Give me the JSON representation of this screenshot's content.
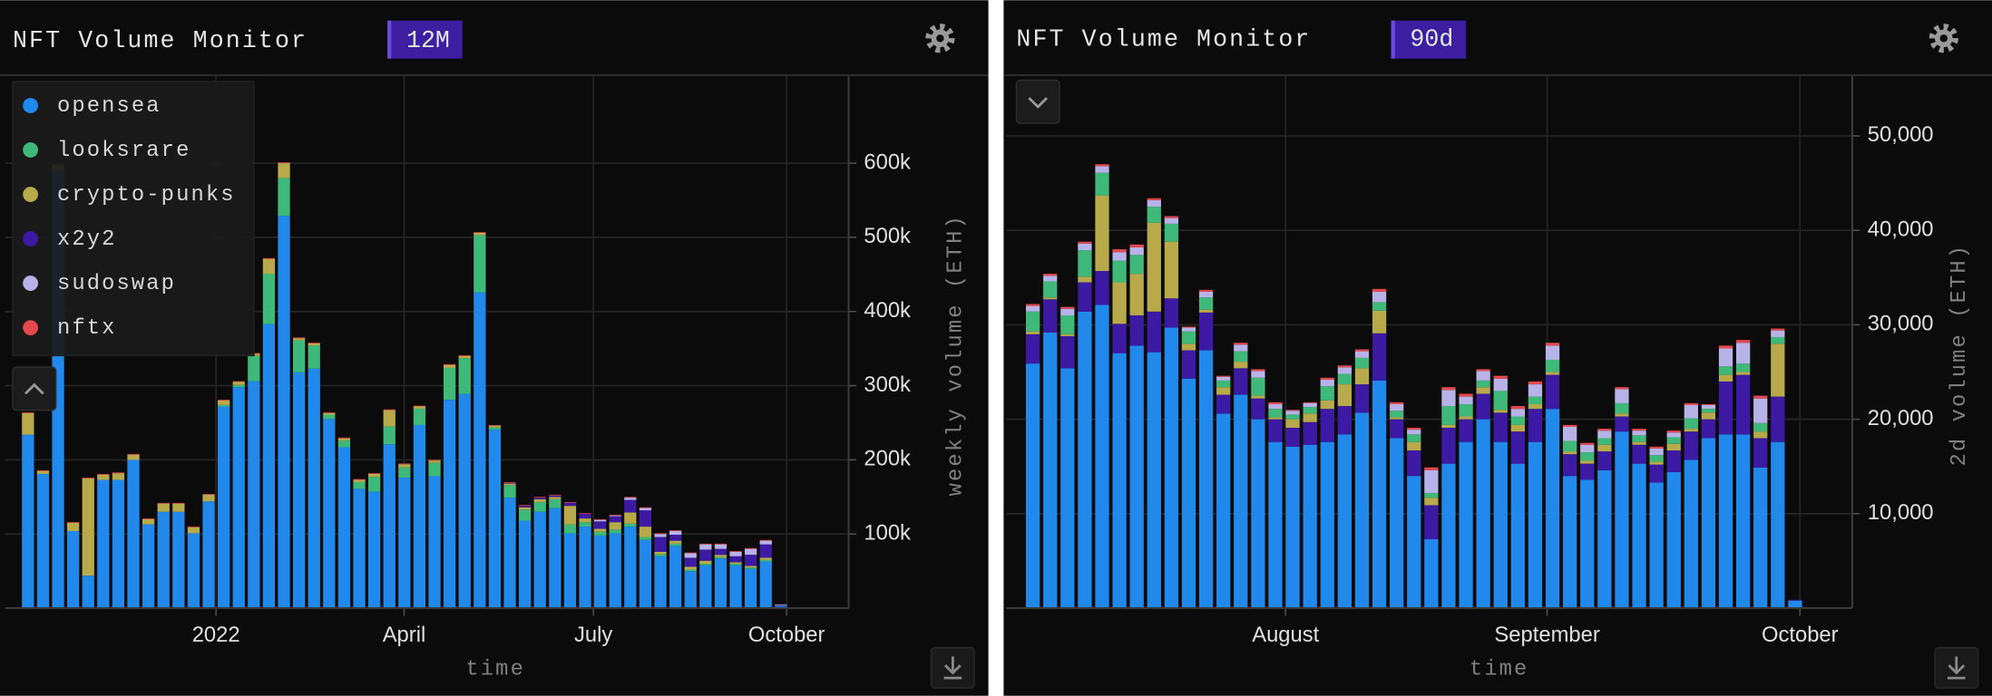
{
  "chart_data": [
    {
      "type": "stacked_bar",
      "title": "NFT Volume Monitor",
      "badge": "12M",
      "x_label": "time",
      "y_label": "weekly volume (ETH)",
      "legend": "upper left",
      "grid": true,
      "x": [
        0,
        1,
        2,
        3,
        4,
        5,
        6,
        7,
        8,
        9,
        10,
        11,
        12,
        13,
        14,
        15,
        16,
        17,
        18,
        19,
        20,
        21,
        22,
        23,
        24,
        25,
        26,
        27,
        28,
        29,
        30,
        31,
        32,
        33,
        34,
        35,
        36,
        37,
        38,
        39,
        40,
        41,
        42,
        43,
        44,
        45,
        46,
        47,
        48,
        49,
        50
      ],
      "xlim": [
        -1.52,
        54.5
      ],
      "xticks": [
        {
          "value": 12.49,
          "label": "2022"
        },
        {
          "value": 24.98,
          "label": "April"
        },
        {
          "value": 37.55,
          "label": "July"
        },
        {
          "value": 50.38,
          "label": "October"
        }
      ],
      "ylim": [
        0,
        717000
      ],
      "yticks": [
        {
          "value": 100000,
          "label": "100k"
        },
        {
          "value": 200000,
          "label": "200k"
        },
        {
          "value": 300000,
          "label": "300k"
        },
        {
          "value": 400000,
          "label": "400k"
        },
        {
          "value": 500000,
          "label": "500k"
        },
        {
          "value": 600000,
          "label": "600k"
        }
      ],
      "series": [
        {
          "name": "opensea",
          "color": "#2189ec",
          "values": [
            234000,
            181000,
            590000,
            104000,
            44000,
            173000,
            173000,
            200000,
            113000,
            130000,
            130000,
            101000,
            144000,
            272000,
            298000,
            306000,
            383000,
            529000,
            318000,
            323000,
            255000,
            217000,
            161000,
            157000,
            221000,
            176000,
            247000,
            178000,
            281000,
            289000,
            426000,
            241000,
            149000,
            118000,
            130000,
            135000,
            101000,
            110000,
            98000,
            101000,
            110000,
            92000,
            70000,
            84000,
            50000,
            58000,
            67000,
            58000,
            53000,
            63000,
            3000
          ]
        },
        {
          "name": "looksrare",
          "color": "#3fb97a",
          "values": [
            0,
            0,
            0,
            0,
            0,
            0,
            0,
            0,
            0,
            0,
            0,
            0,
            0,
            2000,
            3000,
            34000,
            68000,
            51000,
            43000,
            31000,
            6000,
            9000,
            9000,
            20000,
            24000,
            14000,
            22000,
            18000,
            43000,
            48000,
            77000,
            3000,
            17000,
            15000,
            13000,
            12000,
            12000,
            6000,
            5000,
            5000,
            4000,
            4000,
            3000,
            3000,
            2000,
            2000,
            2000,
            2000,
            2000,
            2000,
            0
          ]
        },
        {
          "name": "crypto-punks",
          "color": "#b8a94a",
          "values": [
            29000,
            4000,
            8000,
            11000,
            131000,
            7000,
            9000,
            7000,
            7000,
            11000,
            11000,
            8000,
            9000,
            6000,
            4000,
            3000,
            20000,
            20000,
            3000,
            3000,
            2000,
            3000,
            3000,
            4000,
            22000,
            4000,
            3000,
            3000,
            4000,
            3000,
            3000,
            2000,
            2000,
            3000,
            4000,
            3000,
            25000,
            5000,
            4000,
            10000,
            15000,
            14000,
            3000,
            4000,
            4000,
            4000,
            3000,
            2000,
            2000,
            3000,
            0
          ]
        },
        {
          "name": "x2y2",
          "color": "#3d1aa3",
          "values": [
            0,
            0,
            0,
            0,
            0,
            0,
            0,
            0,
            0,
            0,
            0,
            0,
            0,
            0,
            0,
            0,
            0,
            0,
            0,
            0,
            0,
            0,
            0,
            0,
            0,
            0,
            0,
            0,
            0,
            0,
            0,
            0,
            1000,
            2000,
            2000,
            2000,
            4000,
            6000,
            10000,
            8000,
            17000,
            22000,
            20000,
            8000,
            12000,
            15000,
            8000,
            8000,
            15000,
            18000,
            1000
          ]
        },
        {
          "name": "sudoswap",
          "color": "#b7b3e8",
          "values": [
            0,
            0,
            0,
            0,
            0,
            0,
            0,
            0,
            0,
            0,
            0,
            0,
            0,
            0,
            0,
            0,
            0,
            0,
            0,
            0,
            0,
            0,
            0,
            0,
            0,
            0,
            0,
            0,
            0,
            0,
            0,
            0,
            0,
            0,
            0,
            0,
            0,
            0,
            2000,
            1000,
            3000,
            3000,
            4000,
            5000,
            6000,
            7000,
            6000,
            6000,
            8000,
            5000,
            1000
          ]
        },
        {
          "name": "nftx",
          "color": "#e5484d",
          "values": [
            1000,
            1000,
            1000,
            1000,
            1000,
            1000,
            1000,
            1000,
            1000,
            1000,
            1000,
            1000,
            1000,
            1000,
            1000,
            1000,
            1000,
            1000,
            1000,
            1000,
            1000,
            1000,
            1000,
            1000,
            1000,
            1000,
            1000,
            1000,
            1000,
            1000,
            1000,
            1000,
            1000,
            1000,
            1000,
            1000,
            1000,
            1000,
            1000,
            1000,
            1000,
            1000,
            1000,
            1000,
            1000,
            1000,
            1000,
            1000,
            1000,
            1000,
            0
          ]
        }
      ]
    },
    {
      "type": "stacked_bar",
      "title": "NFT Volume Monitor",
      "badge": "90d",
      "x_label": "time",
      "y_label": "2d volume (ETH)",
      "grid": true,
      "x": [
        0,
        1,
        2,
        3,
        4,
        5,
        6,
        7,
        8,
        9,
        10,
        11,
        12,
        13,
        14,
        15,
        16,
        17,
        18,
        19,
        20,
        21,
        22,
        23,
        24,
        25,
        26,
        27,
        28,
        29,
        30,
        31,
        32,
        33,
        34,
        35,
        36,
        37,
        38,
        39,
        40,
        41,
        42,
        43,
        44
      ],
      "xlim": [
        -1.54,
        47.3
      ],
      "xticks": [
        {
          "value": 14.59,
          "label": "August"
        },
        {
          "value": 29.69,
          "label": "September"
        },
        {
          "value": 44.28,
          "label": "October"
        }
      ],
      "ylim": [
        0,
        56300
      ],
      "yticks": [
        {
          "value": 10000,
          "label": "10,000"
        },
        {
          "value": 20000,
          "label": "20,000"
        },
        {
          "value": 30000,
          "label": "30,000"
        },
        {
          "value": 40000,
          "label": "40,000"
        },
        {
          "value": 50000,
          "label": "50,000"
        }
      ],
      "series": [
        {
          "color": "#2189ec",
          "values": [
            25900,
            29200,
            25400,
            31400,
            32100,
            27000,
            27800,
            27100,
            29700,
            24300,
            27300,
            20600,
            22600,
            20000,
            17600,
            17100,
            17300,
            17600,
            18400,
            20700,
            24100,
            18000,
            14000,
            7300,
            15300,
            17600,
            20000,
            17600,
            15300,
            17600,
            21100,
            14000,
            13600,
            14600,
            18700,
            15300,
            13300,
            14400,
            15700,
            18000,
            18400,
            18400,
            14900,
            17600,
            800
          ]
        },
        {
          "color": "#3d1aa3",
          "values": [
            3100,
            3500,
            3400,
            3100,
            3600,
            3100,
            3200,
            4300,
            3100,
            3000,
            4000,
            2000,
            2800,
            2200,
            2400,
            2000,
            2400,
            3500,
            3000,
            3000,
            5000,
            2000,
            2700,
            3600,
            3800,
            2400,
            2700,
            3100,
            3400,
            3500,
            3600,
            2300,
            1700,
            2000,
            1600,
            2000,
            1900,
            2300,
            3000,
            2000,
            5600,
            6300,
            3100,
            4800,
            100
          ]
        },
        {
          "color": "#b8a94a",
          "values": [
            300,
            200,
            200,
            600,
            8000,
            4400,
            4400,
            9400,
            6000,
            700,
            300,
            800,
            700,
            300,
            200,
            900,
            900,
            900,
            2300,
            1700,
            2400,
            200,
            900,
            800,
            300,
            300,
            700,
            300,
            700,
            500,
            300,
            300,
            300,
            700,
            300,
            300,
            300,
            700,
            300,
            700,
            700,
            300,
            700,
            5600,
            0
          ]
        },
        {
          "color": "#3fb97a",
          "values": [
            2100,
            1700,
            2000,
            2800,
            2400,
            2300,
            2000,
            1700,
            1900,
            1300,
            1300,
            700,
            1100,
            1900,
            900,
            500,
            700,
            1500,
            1100,
            1100,
            900,
            700,
            800,
            500,
            2000,
            1300,
            700,
            2000,
            900,
            800,
            1300,
            1100,
            900,
            700,
            1100,
            700,
            700,
            700,
            1100,
            400,
            900,
            900,
            900,
            700,
            0
          ]
        },
        {
          "color": "#b7b3e8",
          "values": [
            600,
            600,
            700,
            700,
            700,
            900,
            800,
            700,
            600,
            400,
            600,
            400,
            700,
            700,
            500,
            400,
            400,
            700,
            700,
            700,
            1100,
            700,
            500,
            2400,
            1700,
            800,
            1000,
            1300,
            800,
            1300,
            1500,
            1500,
            800,
            800,
            1500,
            500,
            700,
            500,
            1400,
            400,
            1900,
            2200,
            2600,
            700,
            0
          ]
        },
        {
          "color": "#e5484d",
          "values": [
            200,
            200,
            200,
            200,
            200,
            300,
            300,
            200,
            200,
            100,
            200,
            100,
            200,
            200,
            200,
            100,
            100,
            200,
            200,
            200,
            300,
            200,
            200,
            300,
            300,
            300,
            200,
            300,
            300,
            300,
            300,
            200,
            200,
            200,
            200,
            200,
            200,
            200,
            200,
            100,
            300,
            300,
            300,
            200,
            0
          ]
        }
      ]
    }
  ]
}
